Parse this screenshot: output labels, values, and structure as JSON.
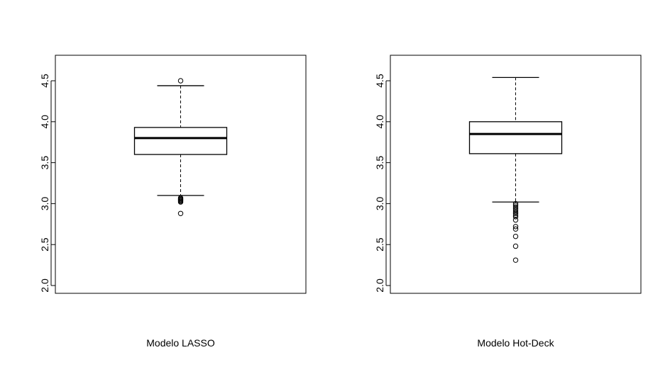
{
  "chart_data": [
    {
      "type": "box",
      "title": "",
      "xlabel": "Modelo LASSO",
      "ylabel": "",
      "ylim": [
        1.9,
        4.8
      ],
      "yticks": [
        "2.0",
        "2.5",
        "3.0",
        "3.5",
        "4.0",
        "4.5"
      ],
      "stats": {
        "lower_whisker": 3.1,
        "q1": 3.6,
        "median": 3.8,
        "q3": 3.93,
        "upper_whisker": 4.44
      },
      "outliers": [
        4.5,
        3.07,
        3.06,
        3.05,
        3.04,
        3.03,
        3.02,
        2.88
      ]
    },
    {
      "type": "box",
      "title": "",
      "xlabel": "Modelo Hot-Deck",
      "ylabel": "",
      "ylim": [
        1.9,
        4.8
      ],
      "yticks": [
        "2.0",
        "2.5",
        "3.0",
        "3.5",
        "4.0",
        "4.5"
      ],
      "stats": {
        "lower_whisker": 3.02,
        "q1": 3.61,
        "median": 3.85,
        "q3": 4.0,
        "upper_whisker": 4.54
      },
      "outliers": [
        3.0,
        2.98,
        2.96,
        2.94,
        2.92,
        2.9,
        2.88,
        2.86,
        2.84,
        2.8,
        2.72,
        2.69,
        2.6,
        2.48,
        2.31
      ]
    }
  ]
}
